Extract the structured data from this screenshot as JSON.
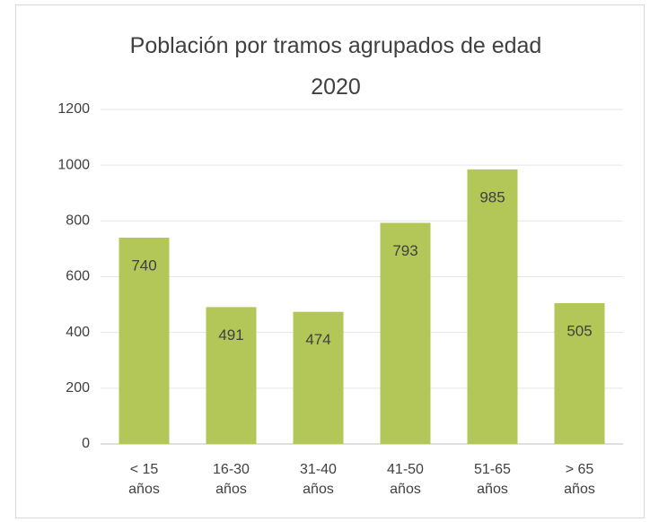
{
  "chart_data": {
    "type": "bar",
    "title": "Población por tramos agrupados de edad 2020",
    "categories": [
      "< 15 años",
      "16-30 años",
      "31-40 años",
      "41-50 años",
      "51-65 años",
      "> 65 años"
    ],
    "values": [
      740,
      491,
      474,
      793,
      985,
      505
    ],
    "color": "#b3c658",
    "ylim": [
      0,
      1200
    ],
    "yticks": [
      0,
      200,
      400,
      600,
      800,
      1000,
      1200
    ],
    "grid": true
  }
}
